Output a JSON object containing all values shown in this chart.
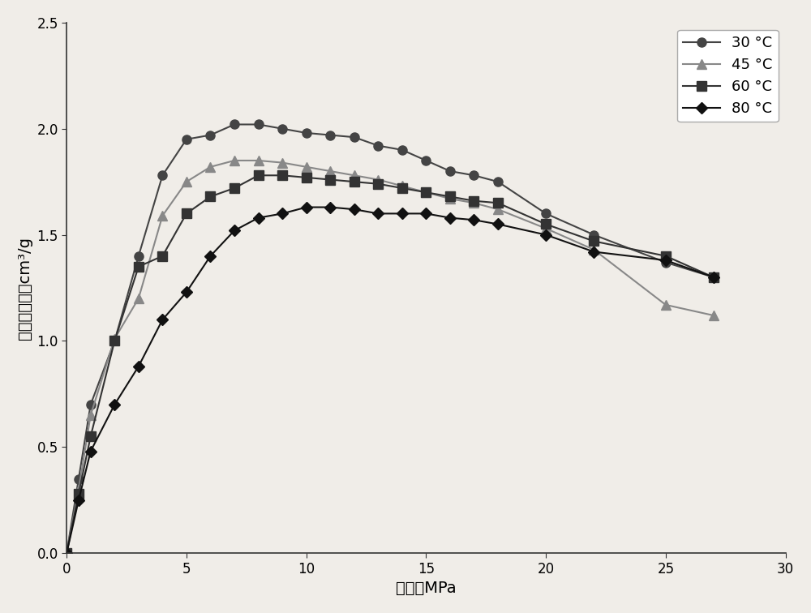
{
  "title": "",
  "xlabel": "压力，MPa",
  "ylabel": "过剩吸附量，cm³/g",
  "xlim": [
    0,
    30
  ],
  "ylim": [
    0.0,
    2.5
  ],
  "xticks": [
    0,
    5,
    10,
    15,
    20,
    25,
    30
  ],
  "yticks": [
    0.0,
    0.5,
    1.0,
    1.5,
    2.0,
    2.5
  ],
  "series": [
    {
      "label": "30 °C",
      "color": "#444444",
      "marker": "o",
      "markersize": 8,
      "x": [
        0,
        0.5,
        1,
        2,
        3,
        4,
        5,
        6,
        7,
        8,
        9,
        10,
        11,
        12,
        13,
        14,
        15,
        16,
        17,
        18,
        20,
        22,
        25,
        27
      ],
      "y": [
        0.0,
        0.35,
        0.7,
        1.0,
        1.4,
        1.78,
        1.95,
        1.97,
        2.02,
        2.02,
        2.0,
        1.98,
        1.97,
        1.96,
        1.92,
        1.9,
        1.85,
        1.8,
        1.78,
        1.75,
        1.6,
        1.5,
        1.37,
        1.3
      ]
    },
    {
      "label": "45 °C",
      "color": "#888888",
      "marker": "^",
      "markersize": 8,
      "x": [
        0,
        0.5,
        1,
        2,
        3,
        4,
        5,
        6,
        7,
        8,
        9,
        10,
        11,
        12,
        13,
        14,
        15,
        16,
        17,
        18,
        20,
        22,
        25,
        27
      ],
      "y": [
        0.0,
        0.3,
        0.65,
        1.01,
        1.2,
        1.59,
        1.75,
        1.82,
        1.85,
        1.85,
        1.84,
        1.82,
        1.8,
        1.78,
        1.76,
        1.73,
        1.7,
        1.67,
        1.65,
        1.62,
        1.53,
        1.43,
        1.17,
        1.12
      ]
    },
    {
      "label": "60 °C",
      "color": "#333333",
      "marker": "s",
      "markersize": 8,
      "x": [
        0,
        0.5,
        1,
        2,
        3,
        4,
        5,
        6,
        7,
        8,
        9,
        10,
        11,
        12,
        13,
        14,
        15,
        16,
        17,
        18,
        20,
        22,
        25,
        27
      ],
      "y": [
        0.0,
        0.28,
        0.55,
        1.0,
        1.35,
        1.4,
        1.6,
        1.68,
        1.72,
        1.78,
        1.78,
        1.77,
        1.76,
        1.75,
        1.74,
        1.72,
        1.7,
        1.68,
        1.66,
        1.65,
        1.55,
        1.47,
        1.4,
        1.3
      ]
    },
    {
      "label": "80 °C",
      "color": "#111111",
      "marker": "D",
      "markersize": 7,
      "x": [
        0,
        0.5,
        1,
        2,
        3,
        4,
        5,
        6,
        7,
        8,
        9,
        10,
        11,
        12,
        13,
        14,
        15,
        16,
        17,
        18,
        20,
        22,
        25,
        27
      ],
      "y": [
        0.0,
        0.25,
        0.48,
        0.7,
        0.88,
        1.1,
        1.23,
        1.4,
        1.52,
        1.58,
        1.6,
        1.63,
        1.63,
        1.62,
        1.6,
        1.6,
        1.6,
        1.58,
        1.57,
        1.55,
        1.5,
        1.42,
        1.38,
        1.3
      ]
    }
  ],
  "background_color": "#f0ede8",
  "linewidth": 1.5,
  "legend_loc": "upper right",
  "legend_fontsize": 13,
  "axis_label_fontsize": 14,
  "tick_fontsize": 12
}
